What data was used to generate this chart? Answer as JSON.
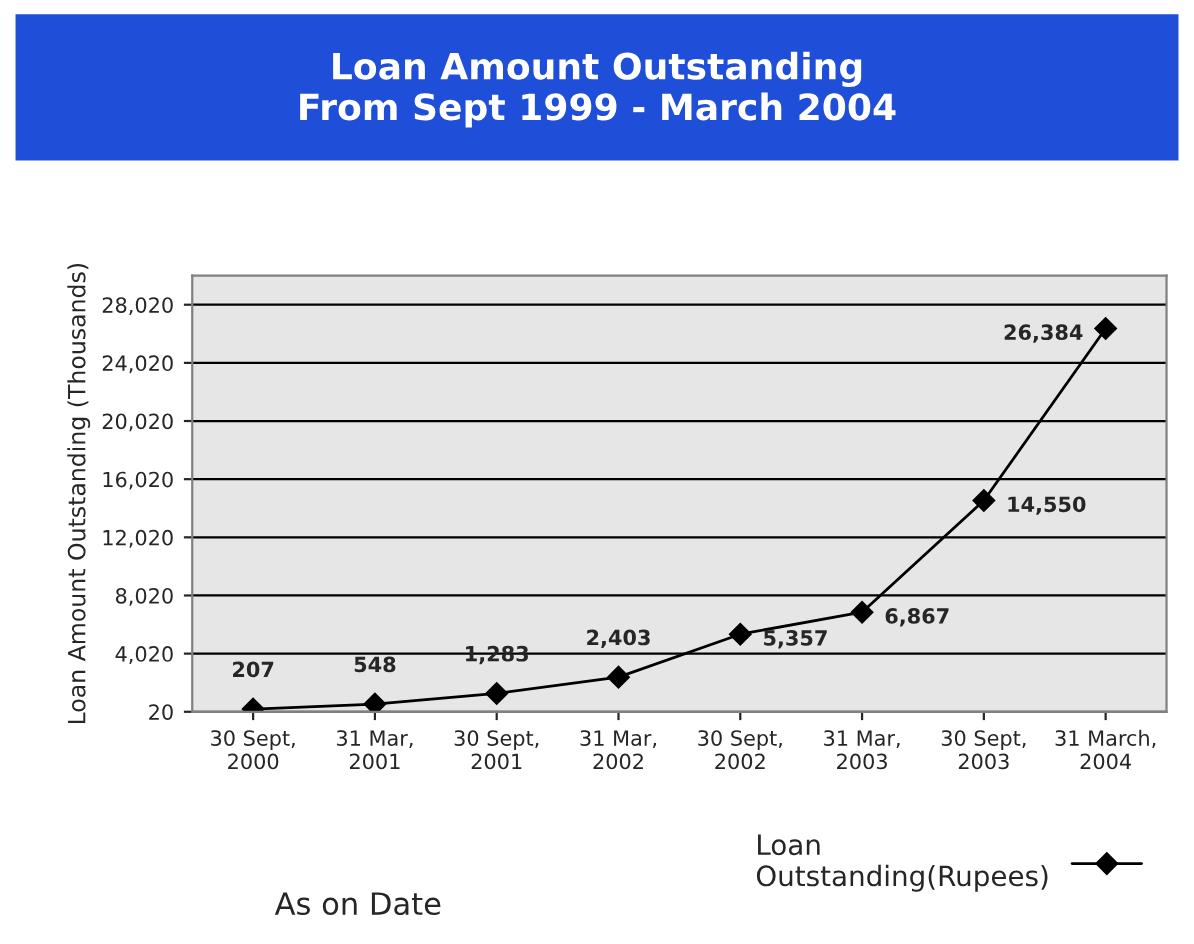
{
  "chart_data": {
    "type": "line",
    "title": "Loan Amount Outstanding\nFrom Sept 1999 - March 2004",
    "xlabel": "As on Date",
    "ylabel": "Loan Amount Outstanding (Thousands)",
    "categories": [
      "30 Sept,\n2000",
      "31 Mar,\n2001",
      "30 Sept,\n2001",
      "31 Mar,\n2002",
      "30 Sept,\n2002",
      "31 Mar,\n2003",
      "30 Sept,\n2003",
      "31 March,\n2004"
    ],
    "series": [
      {
        "name": "Loan\nOutstanding(Rupees)",
        "color": "#000000",
        "values": [
          207,
          548,
          1283,
          2403,
          5357,
          6867,
          14550,
          26384
        ],
        "value_labels": [
          "207",
          "548",
          "1,283",
          "2,403",
          "5,357",
          "6,867",
          "14,550",
          "26,384"
        ]
      }
    ],
    "ylim": [
      20,
      30020
    ],
    "yticks": [
      {
        "value": 20,
        "label": "20"
      },
      {
        "value": 4020,
        "label": "4,020"
      },
      {
        "value": 8020,
        "label": "8,020"
      },
      {
        "value": 12020,
        "label": "12,020"
      },
      {
        "value": 16020,
        "label": "16,020"
      },
      {
        "value": 20020,
        "label": "20,020"
      },
      {
        "value": 24020,
        "label": "24,020"
      },
      {
        "value": 28020,
        "label": "28,020"
      }
    ],
    "grid": "y",
    "legend": "bottom right",
    "marker": "diamond",
    "line_style": "solid"
  }
}
